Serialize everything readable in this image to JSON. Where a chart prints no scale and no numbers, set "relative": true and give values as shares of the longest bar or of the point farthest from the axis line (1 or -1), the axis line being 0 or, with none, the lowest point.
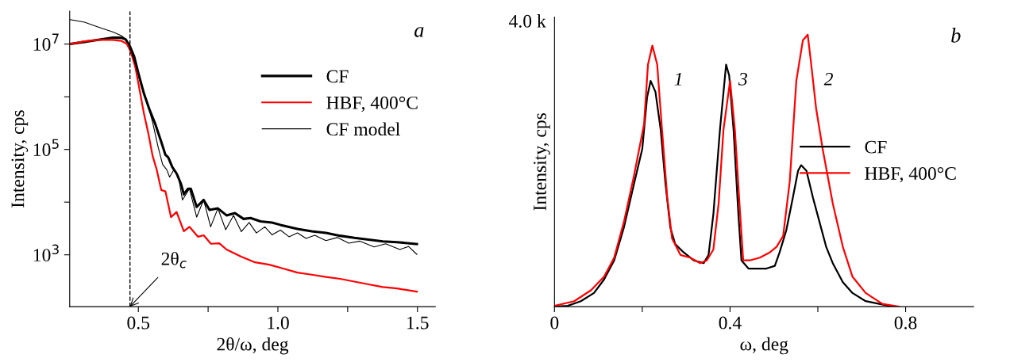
{
  "chart_data": [
    {
      "type": "line",
      "xlabel": "2θ/ω, deg",
      "ylabel": "Intensity, cps",
      "log": "y",
      "legend": "upper right",
      "grid": false,
      "xlim": [
        0.254,
        1.564
      ],
      "xticks": [
        0.5,
        {
          "value": 0.75,
          "label": null
        },
        {
          "value": 1.0,
          "label": "1.0"
        },
        {
          "value": 1.25,
          "label": null
        },
        1.5
      ],
      "ylim": [
        104,
        42000000
      ],
      "yticks": [
        {
          "value": 1000,
          "label": "10$^{3}$"
        },
        {
          "value": 10000,
          "label": null
        },
        {
          "value": 100000,
          "label": "10$^{5}$"
        },
        {
          "value": 1000000,
          "label": null
        },
        {
          "value": 10000000,
          "label": "10$^{7}$"
        }
      ],
      "ref_lines": [
        {
          "axis": "x",
          "value": 0.47,
          "label": null,
          "color": "#000000",
          "line_style": "dashed"
        }
      ],
      "annotations": [
        "a",
        {
          "text": "2θ$_{c}$",
          "x": 0.47,
          "y": 104
        }
      ],
      "series": [
        {
          "name": "CF",
          "color": "#000000",
          "x": [
            0.256,
            0.307,
            0.357,
            0.408,
            0.439,
            0.454,
            0.469,
            0.485,
            0.5,
            0.52,
            0.541,
            0.561,
            0.582,
            0.597,
            0.607,
            0.622,
            0.637,
            0.653,
            0.663,
            0.678,
            0.688,
            0.709,
            0.734,
            0.755,
            0.785,
            0.816,
            0.846,
            0.877,
            0.902,
            0.938,
            0.979,
            1.009,
            1.07,
            1.121,
            1.172,
            1.223,
            1.274,
            1.325,
            1.376,
            1.427,
            1.498
          ],
          "values": [
            10000000.0,
            11000000.0,
            12000000.0,
            13200000.0,
            13200000.0,
            12300000.0,
            9300000.0,
            5800000.0,
            2800000.0,
            1150000.0,
            550000.0,
            300000.0,
            140000.0,
            79000.0,
            71000.0,
            46000.0,
            35000.0,
            22000.0,
            14000.0,
            18000.0,
            18000.0,
            8100,
            11000.0,
            7100,
            7600,
            5600,
            6200,
            4800,
            5000,
            4300,
            4100,
            3700,
            3100,
            2800,
            2600,
            2300,
            2100,
            1950,
            1800,
            1740,
            1600
          ]
        },
        {
          "name": "HBF, 400°C",
          "color": "#ff0000",
          "x": [
            0.256,
            0.307,
            0.357,
            0.408,
            0.439,
            0.459,
            0.474,
            0.49,
            0.505,
            0.52,
            0.536,
            0.551,
            0.566,
            0.582,
            0.597,
            0.617,
            0.637,
            0.663,
            0.683,
            0.714,
            0.734,
            0.76,
            0.79,
            0.816,
            0.867,
            0.918,
            0.969,
            1.019,
            1.07,
            1.121,
            1.172,
            1.223,
            1.274,
            1.325,
            1.376,
            1.427,
            1.498
          ],
          "values": [
            10000000.0,
            11300000.0,
            12000000.0,
            12000000.0,
            11500000.0,
            10000000.0,
            6900000.0,
            3500000.0,
            1300000.0,
            480000.0,
            200000.0,
            76000.0,
            41000.0,
            17000.0,
            16000.0,
            5200,
            6500,
            2800,
            3400,
            2200,
            2350,
            1620,
            1660,
            1260,
            930,
            720,
            650,
            550,
            460,
            420,
            380,
            350,
            310,
            275,
            245,
            230,
            200
          ]
        },
        {
          "name": "CF model",
          "color": "#000000",
          "x": [
            0.256,
            0.307,
            0.357,
            0.408,
            0.439,
            0.459,
            0.474,
            0.49,
            0.51,
            0.531,
            0.551,
            0.571,
            0.587,
            0.602,
            0.612,
            0.627,
            0.643,
            0.658,
            0.683,
            0.709,
            0.734,
            0.759,
            0.785,
            0.813,
            0.841,
            0.869,
            0.897,
            0.923,
            0.953,
            0.979,
            1.009,
            1.04,
            1.07,
            1.101,
            1.132,
            1.172,
            1.213,
            1.254,
            1.294,
            1.345,
            1.386,
            1.437,
            1.468,
            1.498
          ],
          "values": [
            29000000.0,
            26000000.0,
            21000000.0,
            17000000.0,
            14500000.0,
            12000000.0,
            7400000.0,
            4000000.0,
            1660000.0,
            790000.0,
            330000.0,
            110000.0,
            52000.0,
            41000.0,
            30000.0,
            41000.0,
            32000.0,
            11000.0,
            18000.0,
            5200,
            11000.0,
            3400,
            7600,
            3000,
            5600,
            2750,
            4100,
            2600,
            3400,
            2400,
            2950,
            2200,
            2600,
            2050,
            2350,
            1860,
            2130,
            1660,
            1820,
            1410,
            1620,
            1260,
            1440,
            1020
          ]
        }
      ]
    },
    {
      "type": "line",
      "xlabel": "ω, deg",
      "ylabel": "Intensity, cps",
      "legend": "center right",
      "grid": false,
      "xlim": [
        0,
        0.955
      ],
      "xticks": [
        0,
        {
          "value": 0.2,
          "label": null
        },
        0.4,
        {
          "value": 0.6,
          "label": null
        },
        0.8
      ],
      "relative": true,
      "annotations": [
        "b",
        "1",
        "3",
        "2",
        "4.0 k"
      ],
      "series": [
        {
          "name": "CF",
          "color": "#000000",
          "x": [
            0,
            0.03,
            0.06,
            0.09,
            0.113,
            0.136,
            0.158,
            0.181,
            0.2,
            0.211,
            0.219,
            0.23,
            0.242,
            0.253,
            0.264,
            0.275,
            0.294,
            0.317,
            0.34,
            0.351,
            0.362,
            0.377,
            0.391,
            0.398,
            0.408,
            0.419,
            0.426,
            0.442,
            0.46,
            0.483,
            0.502,
            0.513,
            0.528,
            0.543,
            0.555,
            0.562,
            0.574,
            0.589,
            0.604,
            0.619,
            0.634,
            0.657,
            0.679,
            0.709,
            0.74,
            0.77
          ],
          "values": [
            0,
            0.003,
            0.02,
            0.05,
            0.1,
            0.17,
            0.29,
            0.45,
            0.58,
            0.77,
            0.83,
            0.79,
            0.65,
            0.45,
            0.29,
            0.23,
            0.2,
            0.17,
            0.16,
            0.19,
            0.34,
            0.65,
            0.89,
            0.85,
            0.65,
            0.34,
            0.17,
            0.14,
            0.14,
            0.14,
            0.15,
            0.2,
            0.28,
            0.4,
            0.5,
            0.52,
            0.5,
            0.4,
            0.31,
            0.22,
            0.16,
            0.09,
            0.05,
            0.02,
            0.01,
            0
          ]
        },
        {
          "name": "HBF, 400°C",
          "color": "#ff0000",
          "x": [
            0,
            0.045,
            0.083,
            0.113,
            0.136,
            0.158,
            0.181,
            0.204,
            0.213,
            0.223,
            0.234,
            0.245,
            0.257,
            0.268,
            0.287,
            0.309,
            0.332,
            0.347,
            0.362,
            0.374,
            0.385,
            0.4,
            0.411,
            0.423,
            0.43,
            0.445,
            0.468,
            0.491,
            0.506,
            0.521,
            0.536,
            0.551,
            0.566,
            0.577,
            0.585,
            0.596,
            0.611,
            0.634,
            0.657,
            0.679,
            0.709,
            0.747,
            0.785
          ],
          "values": [
            0.003,
            0.02,
            0.06,
            0.11,
            0.18,
            0.31,
            0.48,
            0.67,
            0.89,
            0.96,
            0.89,
            0.65,
            0.4,
            0.25,
            0.19,
            0.18,
            0.16,
            0.17,
            0.21,
            0.38,
            0.65,
            0.83,
            0.65,
            0.34,
            0.17,
            0.17,
            0.18,
            0.2,
            0.22,
            0.26,
            0.46,
            0.83,
            0.98,
            1,
            0.89,
            0.73,
            0.58,
            0.38,
            0.22,
            0.11,
            0.05,
            0.01,
            0
          ]
        }
      ]
    }
  ]
}
